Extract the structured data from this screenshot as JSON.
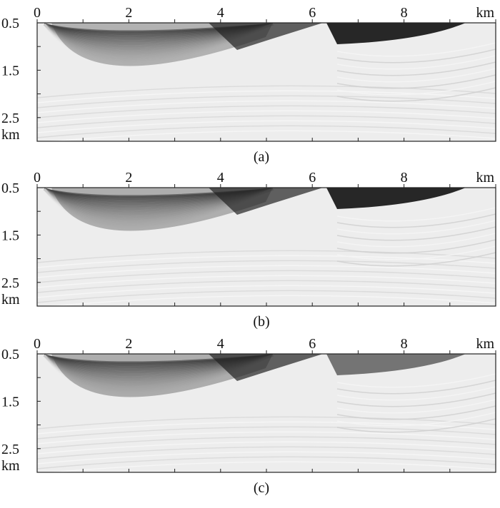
{
  "panels": [
    {
      "caption": "(a)",
      "x_ticks": [
        "0",
        "2",
        "4",
        "6",
        "8"
      ],
      "x_unit": "km",
      "y_ticks": [
        "0.5",
        "1.5",
        "2.5"
      ],
      "y_unit": "km"
    },
    {
      "caption": "(b)",
      "x_ticks": [
        "0",
        "2",
        "4",
        "6",
        "8"
      ],
      "x_unit": "km",
      "y_ticks": [
        "0.5",
        "1.5",
        "2.5"
      ],
      "y_unit": "km"
    },
    {
      "caption": "(c)",
      "x_ticks": [
        "0",
        "2",
        "4",
        "6",
        "8"
      ],
      "x_unit": "km",
      "y_ticks": [
        "0.5",
        "1.5",
        "2.5"
      ],
      "y_unit": "km"
    }
  ],
  "colors": {
    "background": "#ffffff",
    "image_light": "#ededed",
    "image_dark": "#111111",
    "axis": "#222222"
  },
  "chart_data": {
    "type": "heatmap",
    "x_range_km": [
      0,
      10
    ],
    "y_range_km": [
      0.5,
      3.0
    ],
    "x_tick_values": [
      0,
      2,
      4,
      6,
      8
    ],
    "y_tick_values": [
      0.5,
      1.5,
      2.5
    ],
    "colormap": "grayscale"
  }
}
